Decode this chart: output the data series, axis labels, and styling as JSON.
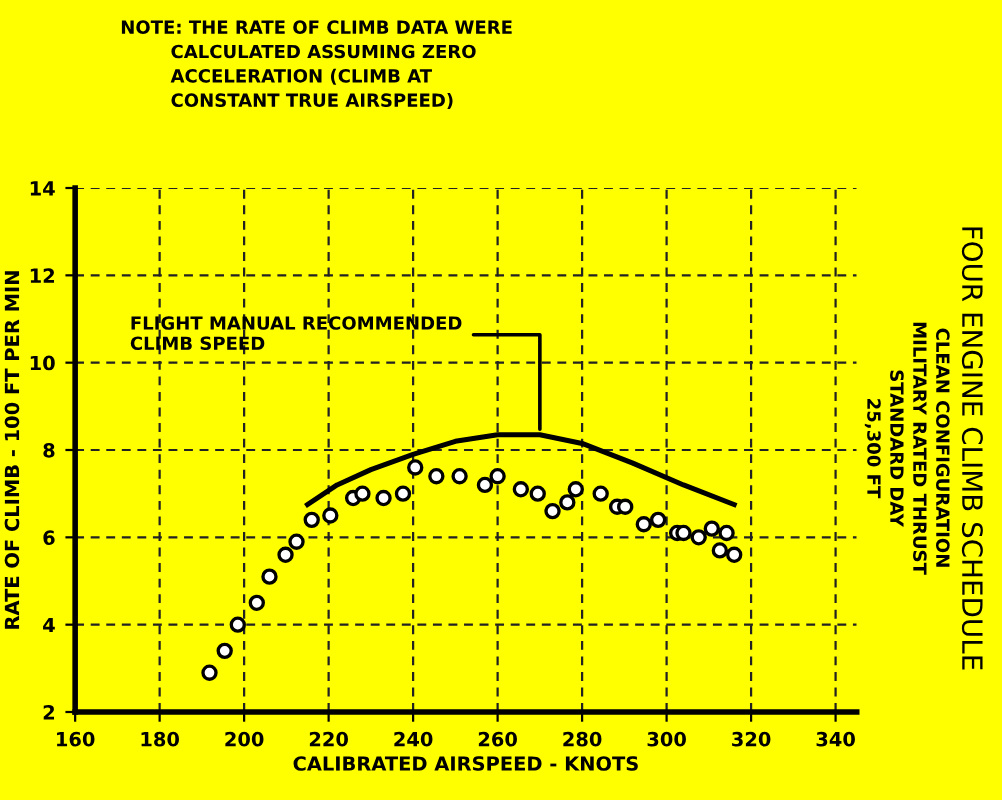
{
  "chart_data": {
    "type": "scatter",
    "title": "FOUR ENGINE CLIMB SCHEDULE",
    "subtitle": "CLEAN CONFIGURATION\nMILITARY RATED THRUST\nSTANDARD DAY\n25,300 FT",
    "xlabel": "CALIBRATED AIRSPEED - KNOTS",
    "ylabel": "RATE OF CLIMB - 100 FT PER MIN",
    "annotations": [
      "NOTE: THE RATE OF CLIMB DATA WERE\n        CALCULATED ASSUMING ZERO\n        ACCELERATION (CLIMB AT\n        CONSTANT TRUE AIRSPEED)",
      {
        "text": "FLIGHT MANUAL RECOMMENDED\nCLIMB SPEED",
        "x": 270,
        "y": 8.35
      }
    ],
    "series": [
      {
        "color": "#000000",
        "marker": "circle",
        "x": [
          191.8,
          195.4,
          198.5,
          203,
          206,
          209.8,
          212.4,
          216,
          220.4,
          225.8,
          228,
          233,
          237.6,
          240.5,
          245.5,
          251,
          257,
          260,
          265.5,
          269.5,
          273,
          276.5,
          278.5,
          284.4,
          288.3,
          290.2,
          294.6,
          298,
          302.5,
          304,
          307.6,
          310.7,
          314.2,
          312.6,
          316
        ],
        "values": [
          2.9,
          3.4,
          4.0,
          4.5,
          5.1,
          5.6,
          5.9,
          6.4,
          6.5,
          6.9,
          7.0,
          6.9,
          7.0,
          7.6,
          7.4,
          7.4,
          7.2,
          7.4,
          7.1,
          7.0,
          6.6,
          6.8,
          7.1,
          7.0,
          6.7,
          6.7,
          6.3,
          6.4,
          6.1,
          6.1,
          6.0,
          6.2,
          6.1,
          5.7,
          5.6
        ]
      },
      {
        "type": "line",
        "color": "#000000",
        "marker": "none",
        "line_style": "solid",
        "x": [
          215,
          222,
          230,
          240,
          250,
          260,
          270,
          280,
          292,
          304,
          316
        ],
        "values": [
          6.75,
          7.2,
          7.55,
          7.9,
          8.2,
          8.35,
          8.35,
          8.15,
          7.7,
          7.2,
          6.75
        ]
      }
    ],
    "xlim": [
      160,
      345
    ],
    "ylim": [
      2,
      14
    ],
    "xticks": [
      160,
      180,
      200,
      220,
      240,
      260,
      280,
      300,
      320,
      340
    ],
    "yticks": [
      2,
      4,
      6,
      8,
      10,
      12,
      14
    ],
    "grid": true
  }
}
